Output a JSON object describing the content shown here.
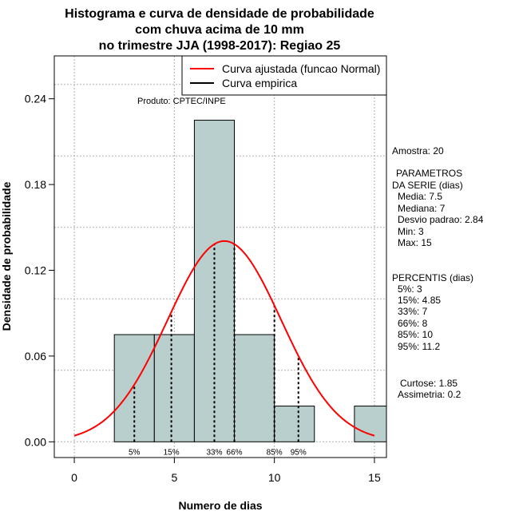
{
  "chart_data": {
    "type": "bar",
    "title_lines": [
      "Histograma e curva de densidade de probabilidade",
      "com chuva acima de 10 mm",
      "no trimestre JJA (1998-2017): Regiao 25"
    ],
    "xlabel": "Numero de dias",
    "ylabel": "Densidade de probabilidade",
    "xlim": [
      -1,
      15.6
    ],
    "ylim": [
      -0.011,
      0.27
    ],
    "xticks": [
      "0",
      "5",
      "10",
      "15"
    ],
    "xtick_values": [
      0,
      5,
      10,
      15
    ],
    "yticks": [
      "0.00",
      "0.06",
      "0.12",
      "0.18",
      "0.24"
    ],
    "ytick_values": [
      0.0,
      0.06,
      0.12,
      0.18,
      0.24
    ],
    "grid": true,
    "bars": [
      {
        "x0": 2,
        "x1": 4,
        "value": 0.075
      },
      {
        "x0": 4,
        "x1": 6,
        "value": 0.075
      },
      {
        "x0": 6,
        "x1": 8,
        "value": 0.225
      },
      {
        "x0": 8,
        "x1": 10,
        "value": 0.075
      },
      {
        "x0": 10,
        "x1": 12,
        "value": 0.025
      },
      {
        "x0": 12,
        "x1": 14,
        "value": 0.0
      },
      {
        "x0": 14,
        "x1": 16,
        "value": 0.025
      }
    ],
    "bar_color": "#b8cfce",
    "curve": {
      "name": "Curva ajustada (funcao Normal)",
      "mean": 7.5,
      "sd": 2.84,
      "x_range": [
        0,
        15
      ],
      "color": "#ff0000"
    },
    "empirical": {
      "name": "Curva empirica",
      "color": "#000000"
    },
    "legend_position": "top-right",
    "percentile_lines": [
      {
        "label": "5%",
        "x": 3
      },
      {
        "label": "15%",
        "x": 4.85
      },
      {
        "label": "33%",
        "x": 7
      },
      {
        "label": "66%",
        "x": 8
      },
      {
        "label": "85%",
        "x": 10
      },
      {
        "label": "95%",
        "x": 11.2
      }
    ],
    "annotation": "Produto: CPTEC/INPE"
  },
  "side_panel": {
    "amostra": "Amostra: 20",
    "param_title_1": "PARAMETROS",
    "param_title_2": "DA SERIE (dias)",
    "params": [
      "Media: 7.5",
      "Mediana: 7",
      "Desvio padrao: 2.84",
      "Min: 3",
      "Max: 15"
    ],
    "perc_title": "PERCENTIS (dias)",
    "percs": [
      "5%: 3",
      "15%: 4.85",
      "33%: 7",
      "66%: 8",
      "85%: 10",
      "95%: 11.2"
    ],
    "curtose": "Curtose: 1.85",
    "assimetria": "Assimetria: 0.2"
  }
}
